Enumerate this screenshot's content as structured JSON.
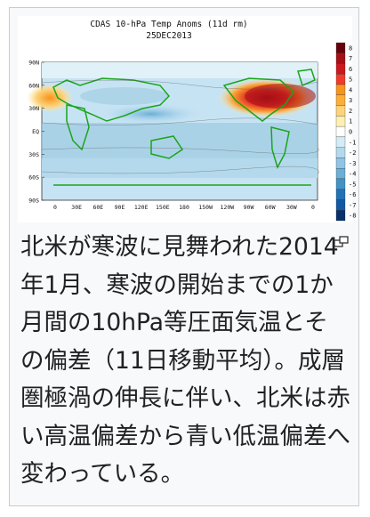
{
  "figure": {
    "title": "CDAS 10-hPa Temp Anoms (11d rm)",
    "date": "25DEC2013",
    "lat_labels": [
      "90N",
      "60N",
      "30N",
      "EQ",
      "30S",
      "60S",
      "90S"
    ],
    "lon_labels": [
      "0",
      "30E",
      "60E",
      "90E",
      "120E",
      "150E",
      "180",
      "150W",
      "120W",
      "90W",
      "60W",
      "30W",
      "0"
    ],
    "colorbar_labels": [
      "8",
      "7",
      "6",
      "5",
      "4",
      "3",
      "2",
      "1",
      "0",
      "-1",
      "-2",
      "-3",
      "-4",
      "-5",
      "-6",
      "-7",
      "-8"
    ]
  },
  "caption": "北米が寒波に見舞われた2014年1月、寒波の開始までの1か月間の10hPa等圧面気温とその偏差（11日移動平均）。成層圏極渦の伸長に伴い、北米は赤い高温偏差から青い低温偏差へ変わっている。"
}
